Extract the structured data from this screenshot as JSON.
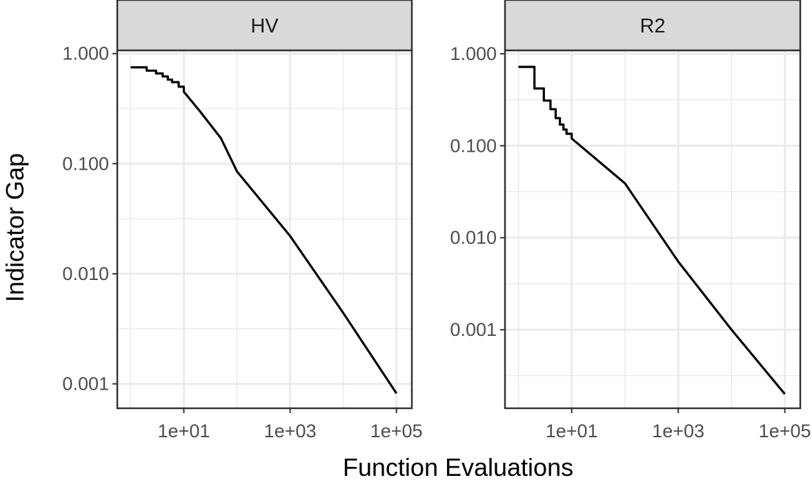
{
  "chart_data": {
    "type": "line",
    "xlabel": "Function Evaluations",
    "ylabel": "Indicator Gap",
    "x_scale": "log10",
    "y_scale": "log10",
    "xlim": [
      0.56,
      195000
    ],
    "x_ticks": [
      10,
      1000,
      100000
    ],
    "x_tick_labels": [
      "1e+01",
      "1e+03",
      "1e+05"
    ],
    "grid": true,
    "panels": [
      {
        "title": "HV",
        "ylim": [
          0.0006,
          1.07
        ],
        "y_ticks": [
          1,
          0.1,
          0.01,
          0.001
        ],
        "y_tick_labels": [
          "1.000",
          "0.100",
          "0.010",
          "0.001"
        ],
        "x": [
          1,
          2,
          3,
          4,
          5,
          6,
          8,
          10,
          20,
          50,
          100,
          1000,
          10000,
          100000
        ],
        "y": [
          0.75,
          0.7,
          0.66,
          0.62,
          0.58,
          0.55,
          0.5,
          0.45,
          0.3,
          0.17,
          0.085,
          0.022,
          0.0044,
          0.00082
        ]
      },
      {
        "title": "R2",
        "ylim": [
          0.00014,
          1.09
        ],
        "y_ticks": [
          1,
          0.1,
          0.01,
          0.001
        ],
        "y_tick_labels": [
          "1.000",
          "0.100",
          "0.010",
          "0.001"
        ],
        "x": [
          1,
          2,
          3,
          4,
          5,
          6,
          7,
          8,
          10,
          100,
          1000,
          10000,
          100000
        ],
        "y": [
          0.72,
          0.42,
          0.31,
          0.25,
          0.2,
          0.17,
          0.15,
          0.135,
          0.12,
          0.039,
          0.0055,
          0.001,
          0.0002
        ]
      }
    ]
  }
}
